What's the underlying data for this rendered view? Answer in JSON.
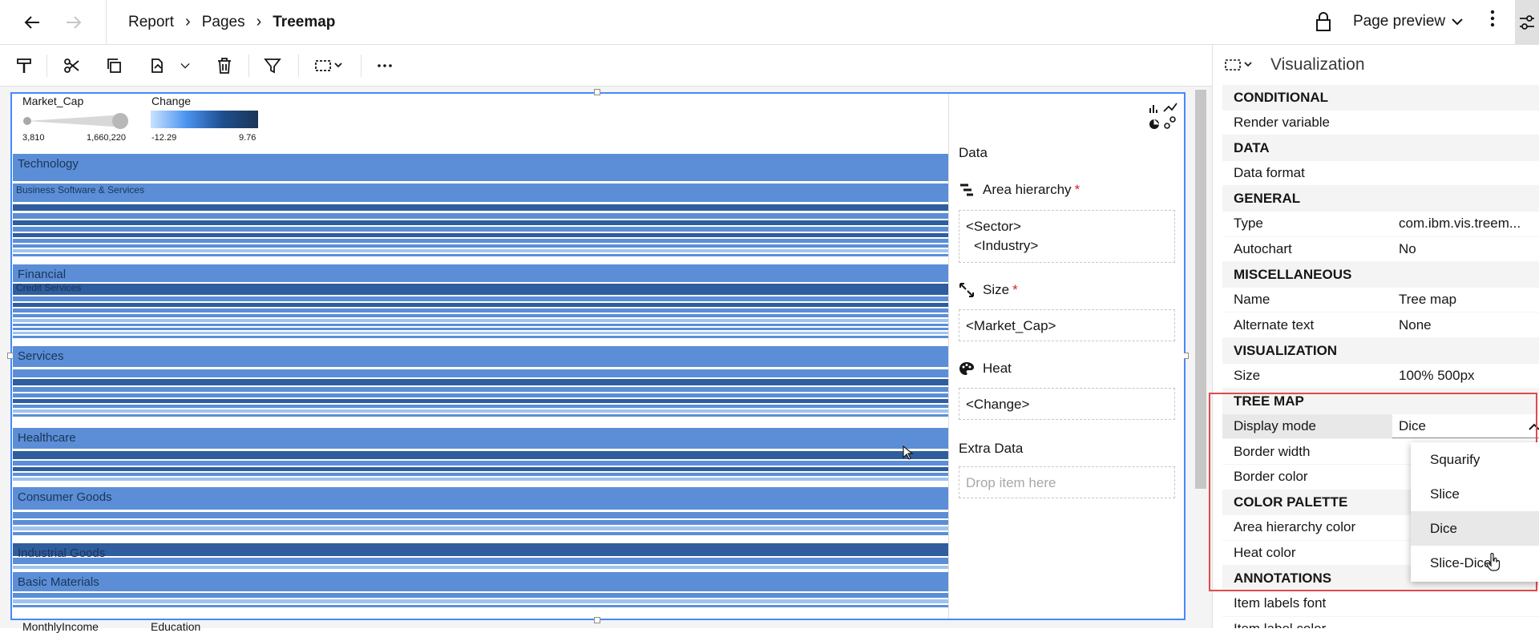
{
  "topbar": {
    "back_icon": "arrow-left-icon",
    "forward_icon": "arrow-right-icon",
    "breadcrumb": [
      "Report",
      "Pages",
      "Treemap"
    ],
    "lock_icon": "lock-icon",
    "page_preview_label": "Page preview",
    "kebab_icon": "overflow-menu-icon",
    "settings_icon": "settings-adjust-icon"
  },
  "toolbar": {
    "icons": [
      "paint-format-icon",
      "cut-icon",
      "copy-icon",
      "paste-icon",
      "chevron-down-icon",
      "delete-icon",
      "filter-icon",
      "select-box-icon",
      "more-icon"
    ]
  },
  "legend": {
    "size_title": "Market_Cap",
    "size_min": "3,810",
    "size_max": "1,660,220",
    "heat_title": "Change",
    "heat_min": "-12.29",
    "heat_max": "9.76",
    "bottom_left": "MonthlyIncome",
    "bottom_right": "Education"
  },
  "treemap": {
    "groups": [
      {
        "label": "Technology",
        "sublabel": "Business Software & Services"
      },
      {
        "label": "Financial",
        "sublabel": "Credit Services"
      },
      {
        "label": "Services",
        "sublabel": ""
      },
      {
        "label": "Healthcare",
        "sublabel": ""
      },
      {
        "label": "Consumer Goods",
        "sublabel": ""
      },
      {
        "label": "Industrial Goods",
        "sublabel": ""
      },
      {
        "label": "Basic Materials",
        "sublabel": ""
      }
    ],
    "colors": {
      "mid": "#5b8ed6",
      "dark": "#2f5d9e",
      "light": "#9fc3f0",
      "gap": "#ffffff"
    }
  },
  "datapanel": {
    "title": "Data",
    "area_label": "Area hierarchy",
    "area_values": [
      "<Sector>",
      "<Industry>"
    ],
    "size_label": "Size",
    "size_value": "<Market_Cap>",
    "heat_label": "Heat",
    "heat_value": "<Change>",
    "extra_label": "Extra Data",
    "extra_placeholder": "Drop item here",
    "required_mark": "*"
  },
  "props": {
    "title": "Visualization",
    "rows": [
      {
        "type": "section",
        "k": "CONDITIONAL"
      },
      {
        "type": "prop",
        "k": "Render variable",
        "v": ""
      },
      {
        "type": "section",
        "k": "DATA"
      },
      {
        "type": "prop",
        "k": "Data format",
        "v": ""
      },
      {
        "type": "section",
        "k": "GENERAL"
      },
      {
        "type": "prop",
        "k": "Type",
        "v": "com.ibm.vis.treem..."
      },
      {
        "type": "prop",
        "k": "Autochart",
        "v": "No"
      },
      {
        "type": "section",
        "k": "MISCELLANEOUS"
      },
      {
        "type": "prop",
        "k": "Name",
        "v": "Tree map"
      },
      {
        "type": "prop",
        "k": "Alternate text",
        "v": "None"
      },
      {
        "type": "section",
        "k": "VISUALIZATION"
      },
      {
        "type": "prop",
        "k": "Size",
        "v": "100% 500px"
      },
      {
        "type": "section",
        "k": "TREE MAP"
      },
      {
        "type": "selected",
        "k": "Display mode",
        "v": "Dice"
      },
      {
        "type": "prop",
        "k": "Border width",
        "v": ""
      },
      {
        "type": "prop",
        "k": "Border color",
        "v": ""
      },
      {
        "type": "section",
        "k": "COLOR PALETTE"
      },
      {
        "type": "prop",
        "k": "Area hierarchy color",
        "v": ""
      },
      {
        "type": "prop",
        "k": "Heat color",
        "v": ""
      },
      {
        "type": "section",
        "k": "ANNOTATIONS"
      },
      {
        "type": "prop",
        "k": "Item labels font",
        "v": ""
      },
      {
        "type": "prop",
        "k": "Item label color",
        "v": ""
      }
    ]
  },
  "dropdown": {
    "options": [
      "Squarify",
      "Slice",
      "Dice",
      "Slice-Dice"
    ],
    "selected": "Dice"
  }
}
